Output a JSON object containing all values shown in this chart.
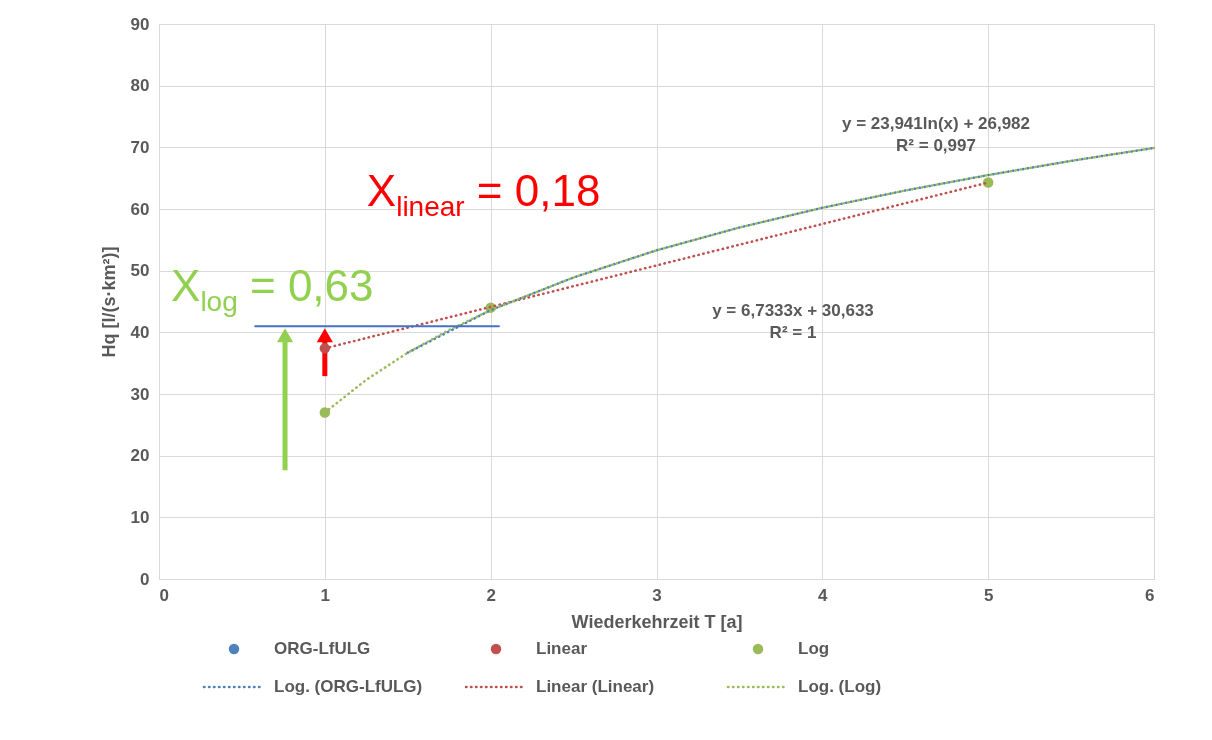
{
  "chart_data": {
    "type": "scatter",
    "xlabel": "Wiederkehrzeit T [a]",
    "ylabel": "Hq [l/(s·km²)]",
    "xlim": [
      0,
      6
    ],
    "xticks": [
      0,
      1,
      2,
      3,
      4,
      5,
      6
    ],
    "ylim": [
      0,
      90
    ],
    "yticks": [
      0,
      10,
      20,
      30,
      40,
      50,
      60,
      70,
      80,
      90
    ],
    "grid": true,
    "legend": "bottom",
    "marker": "circle",
    "series": [
      {
        "name": "ORG-LfULG",
        "color": "#4f81bd"
      },
      {
        "name": "Linear",
        "color": "#c0504d",
        "x": [
          1
        ],
        "values": [
          37.4
        ]
      },
      {
        "name": "Log",
        "color": "#9bbb59",
        "x": [
          1,
          2,
          5
        ],
        "values": [
          27,
          44,
          64.3
        ]
      },
      {
        "name": "Log. (ORG-LfULG)",
        "type": "line",
        "marker": "none",
        "line_style": "dotted",
        "color": "#4f81bd",
        "x": [
          1.5,
          2,
          2.5,
          3,
          3.5,
          4,
          4.5,
          5,
          5.5,
          6
        ],
        "values": [
          36.7,
          43.6,
          48.9,
          53.3,
          57,
          60.2,
          63,
          65.5,
          67.8,
          69.9
        ]
      },
      {
        "name": "Linear (Linear)",
        "type": "line",
        "marker": "none",
        "line_style": "dotted",
        "color": "#c0504d",
        "x": [
          1,
          5
        ],
        "values": [
          37.4,
          64.3
        ]
      },
      {
        "name": "Log. (Log)",
        "type": "line",
        "marker": "none",
        "line_style": "dotted",
        "color": "#9bbb59",
        "x": [
          1,
          1.25,
          1.5,
          1.75,
          2,
          2.5,
          3,
          3.5,
          4,
          4.5,
          5,
          5.5,
          6
        ],
        "values": [
          27,
          32.3,
          36.7,
          40.4,
          43.6,
          48.9,
          53.3,
          57,
          60.2,
          63,
          65.5,
          67.8,
          69.9
        ]
      },
      {
        "type": "line",
        "marker": "none",
        "line_style": "solid",
        "color": "#4472c4",
        "x": [
          0.58,
          2.05
        ],
        "values": [
          41,
          41
        ]
      }
    ],
    "annotations": [
      "y = 23,941ln(x) + 26,982\nR² = 0,997",
      "y = 6,7333x + 30,633\nR² = 1",
      {
        "text": "X$_{linear}$ = 0,18",
        "x": 1.0,
        "y": 41
      },
      {
        "text": "X$_{log}$ = 0,63",
        "x": 0.76,
        "y": 41
      }
    ]
  }
}
